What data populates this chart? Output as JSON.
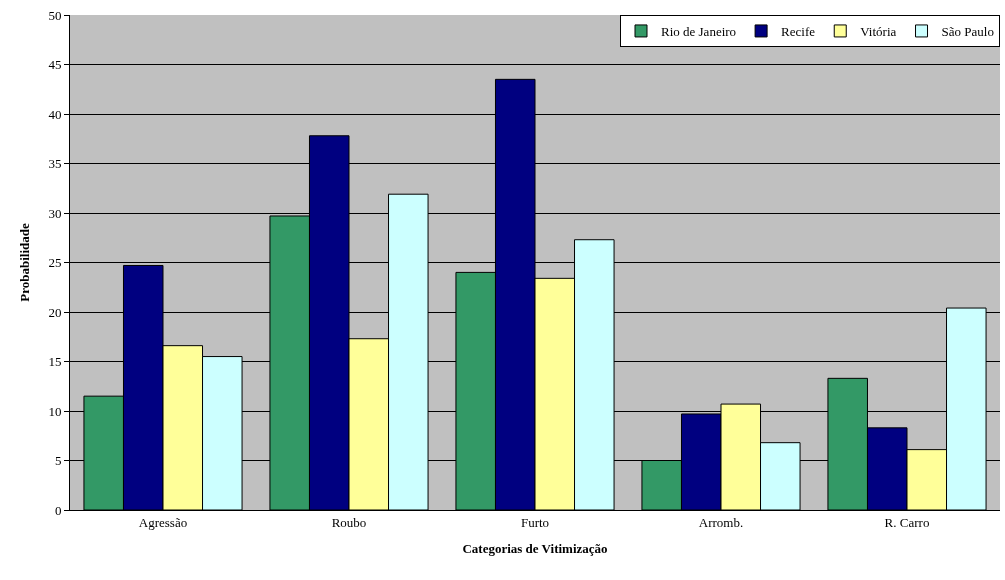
{
  "chart_data": {
    "type": "bar",
    "xlabel": "Categorias de Vitimização",
    "ylabel": "Probabilidade",
    "categories": [
      "Agressão",
      "Roubo",
      "Furto",
      "Arromb.",
      "R. Carro"
    ],
    "series": [
      {
        "name": "Rio de Janeiro",
        "color": "#339966",
        "values": [
          11.5,
          29.7,
          24.0,
          5.0,
          13.3
        ]
      },
      {
        "name": "Recife",
        "color": "#000080",
        "values": [
          24.7,
          37.8,
          43.5,
          9.7,
          8.3
        ]
      },
      {
        "name": "Vitória",
        "color": "#ffff99",
        "values": [
          16.6,
          17.3,
          23.4,
          10.7,
          6.1
        ]
      },
      {
        "name": "São Paulo",
        "color": "#ccffff",
        "values": [
          15.5,
          31.9,
          27.3,
          6.8,
          20.4
        ]
      }
    ],
    "ylim": [
      0,
      50
    ],
    "yticks": [
      0,
      5,
      10,
      15,
      20,
      25,
      30,
      35,
      40,
      45,
      50
    ],
    "grid": "y",
    "legend": "top right"
  }
}
